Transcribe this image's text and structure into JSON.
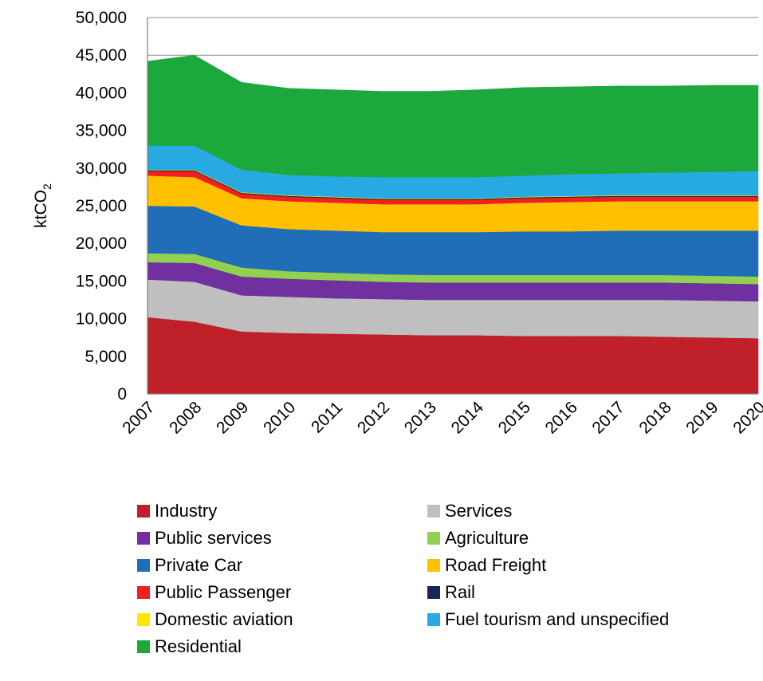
{
  "chart_data": {
    "type": "area",
    "stacked": true,
    "x": [
      "2007",
      "2008",
      "2009",
      "2010",
      "2011",
      "2012",
      "2013",
      "2014",
      "2015",
      "2016",
      "2017",
      "2018",
      "2019",
      "2020"
    ],
    "ylabel_main": "ktCO",
    "ylabel_sub": "2",
    "ylim": [
      0,
      50000
    ],
    "yticks": [
      0,
      5000,
      10000,
      15000,
      20000,
      25000,
      30000,
      35000,
      40000,
      45000,
      50000
    ],
    "ytick_labels": [
      "0",
      "5,000",
      "10,000",
      "15,000",
      "20,000",
      "25,000",
      "30,000",
      "35,000",
      "40,000",
      "45,000",
      "50,000"
    ],
    "grid": true,
    "legend_position": "bottom",
    "series": [
      {
        "name": "Industry",
        "color": "#C0202A",
        "values": [
          10200,
          9600,
          8300,
          8100,
          8000,
          7900,
          7800,
          7800,
          7700,
          7700,
          7700,
          7600,
          7500,
          7400
        ]
      },
      {
        "name": "Services",
        "color": "#BFBFBF",
        "values": [
          5000,
          5300,
          4800,
          4800,
          4700,
          4700,
          4700,
          4700,
          4800,
          4800,
          4800,
          4900,
          4900,
          4900
        ]
      },
      {
        "name": "Public services",
        "color": "#7030A0",
        "values": [
          2300,
          2500,
          2500,
          2400,
          2400,
          2300,
          2300,
          2300,
          2300,
          2300,
          2300,
          2300,
          2300,
          2300
        ]
      },
      {
        "name": "Agriculture",
        "color": "#92D050",
        "values": [
          1200,
          1200,
          1200,
          1000,
          1000,
          1000,
          1000,
          1000,
          1000,
          1000,
          1000,
          1000,
          1000,
          1000
        ]
      },
      {
        "name": "Private Car",
        "color": "#1F6EB7",
        "values": [
          6300,
          6300,
          5600,
          5600,
          5600,
          5600,
          5700,
          5700,
          5800,
          5800,
          5900,
          5900,
          6000,
          6100
        ]
      },
      {
        "name": "Road Freight",
        "color": "#FFC000",
        "values": [
          4000,
          3900,
          3600,
          3700,
          3700,
          3700,
          3700,
          3700,
          3800,
          3900,
          3900,
          3900,
          3900,
          3900
        ]
      },
      {
        "name": "Public Passenger",
        "color": "#F02020",
        "values": [
          600,
          800,
          600,
          600,
          600,
          600,
          600,
          600,
          600,
          600,
          600,
          600,
          600,
          600
        ]
      },
      {
        "name": "Rail",
        "color": "#1A2456",
        "values": [
          120,
          120,
          120,
          120,
          120,
          120,
          120,
          120,
          120,
          120,
          120,
          120,
          120,
          120
        ]
      },
      {
        "name": "Domestic aviation",
        "color": "#FFE800",
        "values": [
          80,
          80,
          80,
          80,
          80,
          80,
          80,
          80,
          80,
          80,
          80,
          80,
          80,
          80
        ]
      },
      {
        "name": "Fuel tourism and unspecified",
        "color": "#27AAE1",
        "values": [
          3200,
          3200,
          3000,
          2700,
          2700,
          2800,
          2800,
          2800,
          2800,
          2900,
          2900,
          3000,
          3100,
          3200
        ]
      },
      {
        "name": "Residential",
        "color": "#1DA83E",
        "values": [
          11200,
          12000,
          11600,
          11500,
          11500,
          11400,
          11400,
          11600,
          11700,
          11600,
          11600,
          11500,
          11500,
          11400
        ]
      }
    ]
  }
}
